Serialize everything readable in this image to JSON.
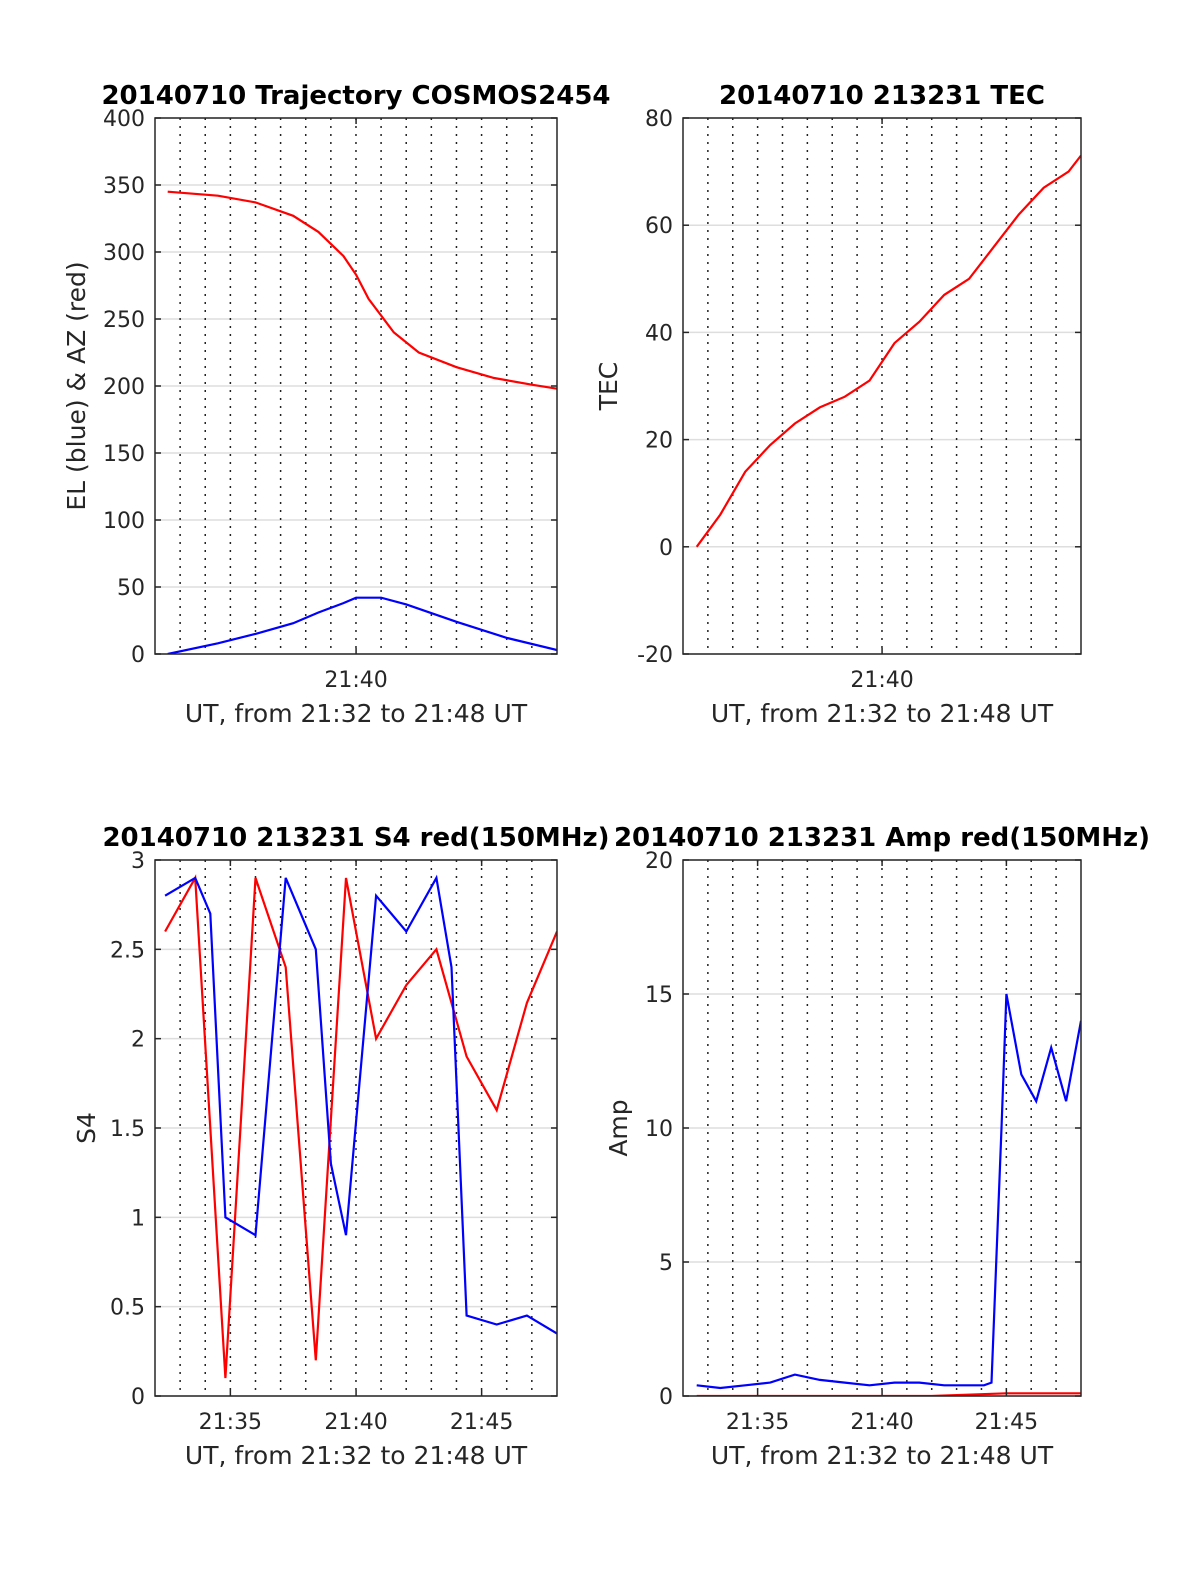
{
  "chart_data": [
    {
      "type": "line",
      "title": "20140710 Trajectory COSMOS2454",
      "xlabel": "UT, from 21:32 to 21:48 UT",
      "ylabel": "EL (blue) & AZ (red)",
      "xlim": [
        21.5333,
        21.8
      ],
      "ylim": [
        0,
        400
      ],
      "yticks": [
        0,
        50,
        100,
        150,
        200,
        250,
        300,
        350,
        400
      ],
      "xticks": [
        {
          "value": 21.6667,
          "label": "21:40"
        }
      ],
      "grid": "vertical dotted every minute, horizontal solid",
      "series": [
        {
          "color": "#ff0000",
          "x": [
            21.5417,
            21.575,
            21.6,
            21.625,
            21.6417,
            21.6583,
            21.6667,
            21.675,
            21.6917,
            21.7083,
            21.7333,
            21.7583,
            21.7833,
            21.8
          ],
          "values": [
            345,
            342,
            337,
            327,
            315,
            297,
            283,
            265,
            240,
            225,
            214,
            206,
            201,
            198
          ]
        },
        {
          "color": "#0000ff",
          "x": [
            21.5417,
            21.575,
            21.6,
            21.625,
            21.6417,
            21.6583,
            21.6667,
            21.6833,
            21.7,
            21.7333,
            21.7667,
            21.8
          ],
          "values": [
            0,
            8,
            15,
            23,
            31,
            38,
            42,
            42,
            37,
            24,
            12,
            3
          ]
        }
      ]
    },
    {
      "type": "line",
      "title": "20140710 213231 TEC",
      "xlabel": "UT, from 21:32 to 21:48 UT",
      "ylabel": "TEC",
      "xlim": [
        21.5333,
        21.8
      ],
      "ylim": [
        -20,
        80
      ],
      "yticks": [
        -20,
        0,
        20,
        40,
        60,
        80
      ],
      "xticks": [
        {
          "value": 21.6667,
          "label": "21:40"
        }
      ],
      "grid": "vertical dotted every minute, horizontal solid",
      "series": [
        {
          "color": "#ff0000",
          "x": [
            21.5425,
            21.5583,
            21.575,
            21.5917,
            21.6083,
            21.625,
            21.6417,
            21.6583,
            21.675,
            21.6917,
            21.7083,
            21.725,
            21.7417,
            21.7583,
            21.775,
            21.7917,
            21.8
          ],
          "values": [
            0,
            6,
            14,
            19,
            23,
            26,
            28,
            31,
            38,
            42,
            47,
            50,
            56,
            62,
            67,
            70,
            73
          ]
        }
      ]
    },
    {
      "type": "line",
      "title": "20140710 213231 S4 red(150MHz)",
      "xlabel": "UT, from 21:32 to 21:48 UT",
      "ylabel": "S4",
      "xlim": [
        21.5333,
        21.8
      ],
      "ylim": [
        0,
        3
      ],
      "yticks": [
        0,
        0.5,
        1,
        1.5,
        2,
        2.5,
        3
      ],
      "xticks": [
        {
          "value": 21.5833,
          "label": "21:35"
        },
        {
          "value": 21.6667,
          "label": "21:40"
        },
        {
          "value": 21.75,
          "label": "21:45"
        }
      ],
      "grid": "vertical dotted every minute, horizontal solid",
      "series": [
        {
          "color": "#ff0000",
          "x": [
            21.54,
            21.56,
            21.58,
            21.6,
            21.62,
            21.64,
            21.66,
            21.68,
            21.7,
            21.72,
            21.74,
            21.76,
            21.78,
            21.8
          ],
          "values": [
            2.6,
            2.9,
            0.1,
            2.9,
            2.4,
            0.2,
            2.9,
            2.0,
            2.3,
            2.5,
            1.9,
            1.6,
            2.2,
            2.6
          ]
        },
        {
          "color": "#0000ff",
          "x": [
            21.54,
            21.56,
            21.57,
            21.58,
            21.59,
            21.6,
            21.62,
            21.64,
            21.65,
            21.66,
            21.68,
            21.7,
            21.72,
            21.73,
            21.74,
            21.76,
            21.78,
            21.8
          ],
          "values": [
            2.8,
            2.9,
            2.7,
            1.0,
            0.95,
            0.9,
            2.9,
            2.5,
            1.3,
            0.9,
            2.8,
            2.6,
            2.9,
            2.4,
            0.45,
            0.4,
            0.45,
            0.35
          ]
        }
      ]
    },
    {
      "type": "line",
      "title": "20140710 213231 Amp red(150MHz)",
      "xlabel": "UT, from 21:32 to 21:48 UT",
      "ylabel": "Amp",
      "xlim": [
        21.5333,
        21.8
      ],
      "ylim": [
        0,
        20
      ],
      "yticks": [
        0,
        5,
        10,
        15,
        20
      ],
      "xticks": [
        {
          "value": 21.5833,
          "label": "21:35"
        },
        {
          "value": 21.6667,
          "label": "21:40"
        },
        {
          "value": 21.75,
          "label": "21:45"
        }
      ],
      "grid": "vertical dotted every minute, horizontal solid",
      "series": [
        {
          "color": "#0000ff",
          "x": [
            21.5425,
            21.5583,
            21.575,
            21.5917,
            21.6083,
            21.625,
            21.6417,
            21.6583,
            21.675,
            21.6917,
            21.7083,
            21.725,
            21.735,
            21.74,
            21.7467,
            21.75,
            21.76,
            21.77,
            21.78,
            21.79,
            21.8
          ],
          "values": [
            0.4,
            0.3,
            0.4,
            0.5,
            0.8,
            0.6,
            0.5,
            0.4,
            0.5,
            0.5,
            0.4,
            0.4,
            0.4,
            0.5,
            10,
            15,
            12,
            11,
            13,
            11,
            14
          ]
        },
        {
          "color": "#ff0000",
          "x": [
            21.5425,
            21.6,
            21.65,
            21.7,
            21.75,
            21.8
          ],
          "values": [
            0,
            0,
            0,
            0,
            0.1,
            0.1
          ]
        }
      ]
    }
  ]
}
